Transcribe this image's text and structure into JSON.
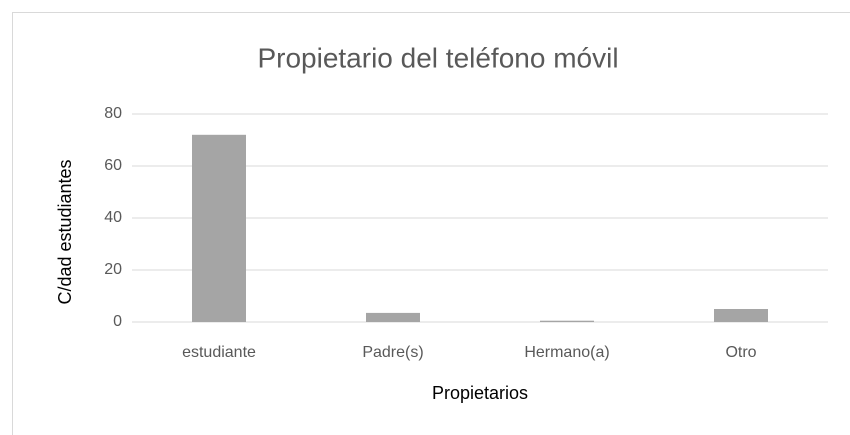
{
  "chart_data": {
    "type": "bar",
    "title": "Propietario del teléfono móvil",
    "x_label": "Propietarios",
    "y_label": "C/dad estudiantes",
    "categories": [
      "estudiante",
      "Padre(s)",
      "Hermano(a)",
      "Otro"
    ],
    "values": [
      72,
      3.5,
      0.5,
      5
    ],
    "color": "#a5a5a5",
    "ylim": [
      0,
      80
    ],
    "yticks": [
      0,
      20,
      40,
      60,
      80
    ],
    "grid": true
  }
}
